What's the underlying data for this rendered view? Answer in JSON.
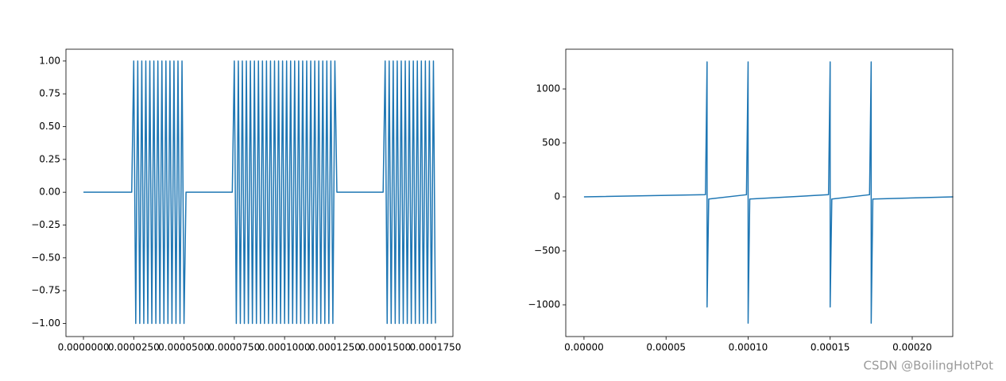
{
  "chart_data": [
    {
      "type": "line",
      "x": [
        0,
        1e-06,
        2e-06,
        3e-06,
        4e-06,
        5e-06,
        6e-06,
        7e-06,
        8e-06,
        9e-06,
        1e-05,
        1.1e-05,
        1.2e-05,
        1.3e-05,
        1.4e-05,
        1.5e-05,
        1.6e-05,
        1.7e-05,
        1.8e-05,
        1.9e-05,
        2e-05,
        2.1e-05,
        2.2e-05,
        2.3e-05,
        2.4e-05,
        2.5e-05,
        2.6e-05,
        2.7e-05,
        2.8e-05,
        2.9e-05,
        3e-05,
        3.1e-05,
        3.2e-05,
        3.3e-05,
        3.4e-05,
        3.5e-05,
        3.6e-05,
        3.7e-05,
        3.8e-05,
        3.9e-05,
        4e-05,
        4.1e-05,
        4.2e-05,
        4.3e-05,
        4.4e-05,
        4.5e-05,
        4.6e-05,
        4.7e-05,
        4.8e-05,
        4.9e-05,
        5e-05,
        5.1e-05,
        5.2e-05,
        5.3e-05,
        5.4e-05,
        5.5e-05,
        5.6e-05,
        5.7e-05,
        5.8e-05,
        5.9e-05,
        6e-05,
        6.1e-05,
        6.2e-05,
        6.3e-05,
        6.4e-05,
        6.5e-05,
        6.6e-05,
        6.7e-05,
        6.8e-05,
        6.9e-05,
        7e-05,
        7.1e-05,
        7.2e-05,
        7.3e-05,
        7.4e-05,
        7.5e-05,
        7.6e-05,
        7.7e-05,
        7.8e-05,
        7.9e-05,
        8e-05,
        8.1e-05,
        8.2e-05,
        8.3e-05,
        8.4e-05,
        8.5e-05,
        8.6e-05,
        8.7e-05,
        8.8e-05,
        8.9e-05,
        9e-05,
        9.1e-05,
        9.2e-05,
        9.3e-05,
        9.4e-05,
        9.5e-05,
        9.6e-05,
        9.7e-05,
        9.8e-05,
        9.9e-05,
        0.0001,
        0.000101,
        0.000102,
        0.000103,
        0.000104,
        0.000105,
        0.000106,
        0.000107,
        0.000108,
        0.000109,
        0.00011,
        0.000111,
        0.000112,
        0.000113,
        0.000114,
        0.000115,
        0.000116,
        0.000117,
        0.000118,
        0.000119,
        0.00012,
        0.000121,
        0.000122,
        0.000123,
        0.000124,
        0.000125,
        0.000126,
        0.000127,
        0.000128,
        0.000129,
        0.00013,
        0.000131,
        0.000132,
        0.000133,
        0.000134,
        0.000135,
        0.000136,
        0.000137,
        0.000138,
        0.000139,
        0.00014,
        0.000141,
        0.000142,
        0.000143,
        0.000144,
        0.000145,
        0.000146,
        0.000147,
        0.000148,
        0.000149,
        0.00015,
        0.000151,
        0.000152,
        0.000153,
        0.000154,
        0.000155,
        0.000156,
        0.000157,
        0.000158,
        0.000159,
        0.00016,
        0.000161,
        0.000162,
        0.000163,
        0.000164,
        0.000165,
        0.000166,
        0.000167,
        0.000168,
        0.000169,
        0.00017,
        0.000171,
        0.000172,
        0.000173,
        0.000174,
        0.000175
      ],
      "series": [
        {
          "color": "#1f77b4",
          "values": [
            0,
            0,
            0,
            0,
            0,
            0,
            0,
            0,
            0,
            0,
            0,
            0,
            0,
            0,
            0,
            0,
            0,
            0,
            0,
            0,
            0,
            0,
            0,
            0,
            0,
            1,
            -1,
            1,
            -1,
            1,
            -1,
            1,
            -1,
            1,
            -1,
            1,
            -1,
            1,
            -1,
            1,
            -1,
            1,
            -1,
            1,
            -1,
            1,
            -1,
            1,
            -1,
            1,
            -1,
            0,
            0,
            0,
            0,
            0,
            0,
            0,
            0,
            0,
            0,
            0,
            0,
            0,
            0,
            0,
            0,
            0,
            0,
            0,
            0,
            0,
            0,
            0,
            0,
            1,
            -1,
            1,
            -1,
            1,
            -1,
            1,
            -1,
            1,
            -1,
            1,
            -1,
            1,
            -1,
            1,
            -1,
            1,
            -1,
            1,
            -1,
            1,
            -1,
            1,
            -1,
            1,
            -1,
            1,
            -1,
            1,
            -1,
            1,
            -1,
            1,
            -1,
            1,
            -1,
            1,
            -1,
            1,
            -1,
            1,
            -1,
            1,
            -1,
            1,
            -1,
            1,
            -1,
            1,
            -1,
            1,
            0,
            0,
            0,
            0,
            0,
            0,
            0,
            0,
            0,
            0,
            0,
            0,
            0,
            0,
            0,
            0,
            0,
            0,
            0,
            0,
            0,
            0,
            0,
            0,
            1,
            -1,
            1,
            -1,
            1,
            -1,
            1,
            -1,
            1,
            -1,
            1,
            -1,
            1,
            -1,
            1,
            -1,
            1,
            -1,
            1,
            -1,
            1,
            -1,
            1,
            -1,
            1,
            -1
          ]
        }
      ],
      "xlim": [
        -8.7e-06,
        0.0001837
      ],
      "ylim": [
        -1.1,
        1.09
      ],
      "xticks": [
        {
          "value": 0,
          "label": "0.0000000"
        },
        {
          "value": 2.5e-05,
          "label": "0.0000250"
        },
        {
          "value": 5e-05,
          "label": "0.0000500"
        },
        {
          "value": 7.5e-05,
          "label": "0.0000750"
        },
        {
          "value": 0.0001,
          "label": "0.0001000"
        },
        {
          "value": 0.000125,
          "label": "0.0001250"
        },
        {
          "value": 0.00015,
          "label": "0.0001500"
        },
        {
          "value": 0.000175,
          "label": "0.0001750"
        }
      ],
      "yticks": [
        {
          "value": -1,
          "label": "−1.00"
        },
        {
          "value": -0.75,
          "label": "−0.75"
        },
        {
          "value": -0.5,
          "label": "−0.50"
        },
        {
          "value": -0.25,
          "label": "−0.25"
        },
        {
          "value": 0,
          "label": "0.00"
        },
        {
          "value": 0.25,
          "label": "0.25"
        },
        {
          "value": 0.5,
          "label": "0.50"
        },
        {
          "value": 0.75,
          "label": "0.75"
        },
        {
          "value": 1,
          "label": "1.00"
        }
      ]
    },
    {
      "type": "line",
      "x": [
        0,
        7.4e-05,
        7.5e-05,
        7.5e-05,
        7.6e-05,
        9.9e-05,
        0.0001,
        0.0001,
        0.000101,
        0.000149,
        0.00015,
        0.00015,
        0.000151,
        0.000174,
        0.000175,
        0.000175,
        0.000176,
        0.000225
      ],
      "series": [
        {
          "color": "#1f77b4",
          "values": [
            0,
            20,
            1250,
            -1020,
            -20,
            20,
            1250,
            -1170,
            -20,
            20,
            1250,
            -1020,
            -20,
            20,
            1250,
            -1170,
            -20,
            0
          ]
        }
      ],
      "xlim": [
        -1.11e-05,
        0.0002247
      ],
      "ylim": [
        -1294,
        1368
      ],
      "xticks": [
        {
          "value": 0,
          "label": "0.00000"
        },
        {
          "value": 5e-05,
          "label": "0.00005"
        },
        {
          "value": 0.0001,
          "label": "0.00010"
        },
        {
          "value": 0.00015,
          "label": "0.00015"
        },
        {
          "value": 0.0002,
          "label": "0.00020"
        }
      ],
      "yticks": [
        {
          "value": -1000,
          "label": "−1000"
        },
        {
          "value": -500,
          "label": "−500"
        },
        0,
        500,
        1000
      ]
    }
  ],
  "watermark": "CSDN @BoilingHotPot"
}
